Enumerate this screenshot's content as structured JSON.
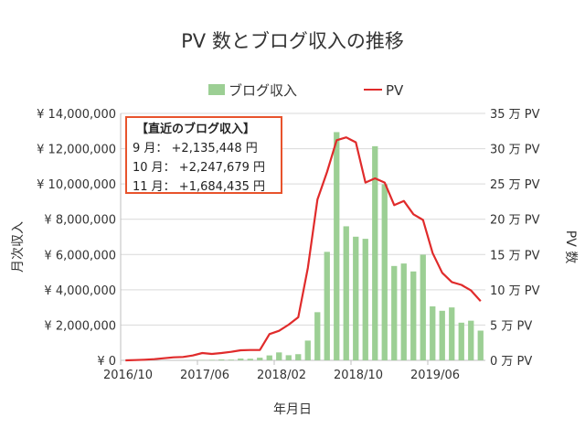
{
  "chart_data": {
    "type": "bar+line",
    "title": "PV 数とブログ収入の推移",
    "xlabel": "年月日",
    "ylabel": "月次収入",
    "y2label": "PV 数",
    "legend_position": "top",
    "grid": true,
    "ylim": [
      0,
      14000000
    ],
    "y2lim": [
      0,
      35
    ],
    "y_ticks": [
      "¥ 0",
      "¥ 2,000,000",
      "¥ 4,000,000",
      "¥ 6,000,000",
      "¥ 8,000,000",
      "¥ 10,000,000",
      "¥ 12,000,000",
      "¥ 14,000,000"
    ],
    "y2_ticks": [
      "0 万 PV",
      "5 万 PV",
      "10 万 PV",
      "15 万 PV",
      "20 万 PV",
      "25 万 PV",
      "30 万 PV",
      "35 万 PV"
    ],
    "x_tick_labels": [
      "2016/10",
      "2017/06",
      "2018/02",
      "2018/10",
      "2019/06"
    ],
    "categories": [
      "2016/10",
      "2016/11",
      "2016/12",
      "2017/01",
      "2017/02",
      "2017/03",
      "2017/04",
      "2017/05",
      "2017/06",
      "2017/07",
      "2017/08",
      "2017/09",
      "2017/10",
      "2017/11",
      "2017/12",
      "2018/01",
      "2018/02",
      "2018/03",
      "2018/04",
      "2018/05",
      "2018/06",
      "2018/07",
      "2018/08",
      "2018/09",
      "2018/10",
      "2018/11",
      "2018/12",
      "2019/01",
      "2019/02",
      "2019/03",
      "2019/04",
      "2019/05",
      "2019/06",
      "2019/07",
      "2019/08",
      "2019/09",
      "2019/10",
      "2019/11"
    ],
    "series": [
      {
        "name": "ブログ収入",
        "type": "bar",
        "axis": "left",
        "color": "#9ccf94",
        "values": [
          0,
          0,
          0,
          0,
          0,
          0,
          0,
          10000,
          20000,
          30000,
          50000,
          40000,
          100000,
          90000,
          150000,
          280000,
          450000,
          290000,
          350000,
          1120000,
          2730000,
          6150000,
          12940000,
          7600000,
          7010000,
          6890000,
          12140000,
          9980000,
          5350000,
          5490000,
          5040000,
          5990000,
          3060000,
          2810000,
          3000000,
          2135448,
          2247679,
          1684435
        ]
      },
      {
        "name": "PV",
        "type": "line",
        "axis": "right",
        "unit": "万 PV",
        "color": "#e02b2b",
        "values": [
          0,
          0.04,
          0.09,
          0.17,
          0.3,
          0.43,
          0.48,
          0.69,
          1.04,
          0.91,
          1.04,
          1.21,
          1.43,
          1.47,
          1.47,
          3.72,
          4.19,
          5.06,
          6.1,
          13.1,
          22.8,
          26.7,
          31.2,
          31.6,
          30.9,
          25.2,
          25.8,
          25.2,
          22.0,
          22.6,
          20.7,
          19.9,
          15.2,
          12.4,
          11.1,
          10.7,
          9.9,
          8.4
        ]
      }
    ],
    "annotation": {
      "heading": "【直近のブログ収入】",
      "lines": [
        "9 月： +2,135,448 円",
        "10 月： +2,247,679 円",
        "11 月： +1,684,435 円"
      ]
    }
  }
}
